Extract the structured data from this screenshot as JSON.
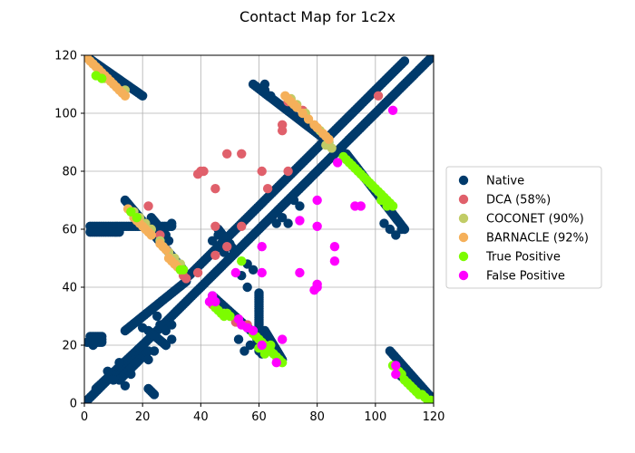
{
  "chart_data": {
    "type": "scatter",
    "title": "Contact Map for 1c2x",
    "xlabel": "",
    "ylabel": "",
    "xlim": [
      0,
      120
    ],
    "ylim": [
      0,
      120
    ],
    "xticks": [
      0,
      20,
      40,
      60,
      80,
      100,
      120
    ],
    "yticks": [
      0,
      20,
      40,
      60,
      80,
      100,
      120
    ],
    "grid": true,
    "legend_position": "right",
    "series": [
      {
        "name": "Native",
        "color": "#003a6b",
        "segments": [
          {
            "from": [
              0,
              0
            ],
            "to": [
              120,
              120
            ]
          },
          {
            "from": [
              0,
              120
            ],
            "to": [
              20,
              106
            ]
          },
          {
            "from": [
              36,
              44
            ],
            "to": [
              110,
              118
            ]
          },
          {
            "from": [
              2,
              23
            ],
            "to": [
              6,
              23
            ]
          },
          {
            "from": [
              1,
              21
            ],
            "to": [
              6,
              21
            ]
          },
          {
            "from": [
              2,
              61
            ],
            "to": [
              30,
              61
            ]
          },
          {
            "from": [
              2,
              59
            ],
            "to": [
              12,
              59
            ]
          },
          {
            "from": [
              4,
              5
            ],
            "to": [
              20,
              20
            ]
          },
          {
            "from": [
              12,
              8
            ],
            "to": [
              22,
              18
            ]
          },
          {
            "from": [
              14,
              25
            ],
            "to": [
              35,
              42
            ]
          },
          {
            "from": [
              14,
              70
            ],
            "to": [
              34,
              46
            ]
          },
          {
            "from": [
              22,
              25
            ],
            "to": [
              28,
              20
            ]
          },
          {
            "from": [
              23,
              64
            ],
            "to": [
              28,
              58
            ]
          },
          {
            "from": [
              22,
              5
            ],
            "to": [
              24,
              3
            ]
          },
          {
            "from": [
              44,
              37
            ],
            "to": [
              65,
              18
            ]
          },
          {
            "from": [
              46,
              60
            ],
            "to": [
              52,
              52
            ]
          },
          {
            "from": [
              62,
              25
            ],
            "to": [
              68,
              15
            ]
          },
          {
            "from": [
              60,
              38
            ],
            "to": [
              60,
              18
            ]
          },
          {
            "from": [
              59,
              23
            ],
            "to": [
              61,
              17
            ]
          },
          {
            "from": [
              58,
              110
            ],
            "to": [
              84,
              90
            ]
          },
          {
            "from": [
              90,
              86
            ],
            "to": [
              110,
              60
            ]
          },
          {
            "from": [
              105,
              18
            ],
            "to": [
              120,
              1
            ]
          },
          {
            "from": [
              108,
              10
            ],
            "to": [
              118,
              2
            ]
          }
        ],
        "points": [
          [
            2,
            22
          ],
          [
            4,
            22
          ],
          [
            3,
            20
          ],
          [
            6,
            22
          ],
          [
            26,
            27
          ],
          [
            28,
            25
          ],
          [
            30,
            27
          ],
          [
            25,
            30
          ],
          [
            20,
            26
          ],
          [
            30,
            22
          ],
          [
            28,
            20
          ],
          [
            24,
            18
          ],
          [
            22,
            15
          ],
          [
            18,
            14
          ],
          [
            16,
            10
          ],
          [
            14,
            6
          ],
          [
            12,
            14
          ],
          [
            8,
            11
          ],
          [
            10,
            8
          ],
          [
            26,
            60
          ],
          [
            27,
            58
          ],
          [
            29,
            56
          ],
          [
            30,
            62
          ],
          [
            44,
            56
          ],
          [
            46,
            58
          ],
          [
            48,
            52
          ],
          [
            50,
            55
          ],
          [
            54,
            44
          ],
          [
            56,
            48
          ],
          [
            58,
            46
          ],
          [
            56,
            40
          ],
          [
            55,
            18
          ],
          [
            53,
            22
          ],
          [
            57,
            20
          ],
          [
            66,
            62
          ],
          [
            68,
            64
          ],
          [
            70,
            62
          ],
          [
            72,
            70
          ],
          [
            74,
            68
          ],
          [
            62,
            108
          ],
          [
            64,
            106
          ],
          [
            62,
            110
          ],
          [
            103,
            62
          ],
          [
            105,
            60
          ],
          [
            107,
            58
          ],
          [
            109,
            60
          ]
        ]
      },
      {
        "name": "DCA (58%)",
        "color": "#e0606b",
        "points": [
          [
            101,
            106
          ],
          [
            68,
            96
          ],
          [
            68,
            94
          ],
          [
            70,
            104
          ],
          [
            75,
            101
          ],
          [
            49,
            86
          ],
          [
            54,
            86
          ],
          [
            40,
            80
          ],
          [
            41,
            80
          ],
          [
            39,
            79
          ],
          [
            61,
            80
          ],
          [
            70,
            80
          ],
          [
            45,
            74
          ],
          [
            63,
            74
          ],
          [
            22,
            68
          ],
          [
            45,
            61
          ],
          [
            54,
            61
          ],
          [
            26,
            58
          ],
          [
            29,
            52
          ],
          [
            49,
            54
          ],
          [
            45,
            51
          ],
          [
            39,
            45
          ],
          [
            34,
            44
          ],
          [
            35,
            43
          ],
          [
            44,
            34
          ],
          [
            52,
            28
          ],
          [
            56,
            27
          ]
        ]
      },
      {
        "name": "COCONET (90%)",
        "color": "#c1cc66",
        "points": [
          [
            3,
            117
          ],
          [
            5,
            115
          ],
          [
            7,
            112
          ],
          [
            14,
            108
          ],
          [
            71,
            105
          ],
          [
            73,
            103
          ],
          [
            76,
            100
          ],
          [
            81,
            94
          ],
          [
            84,
            90
          ],
          [
            83,
            89
          ],
          [
            85,
            88
          ],
          [
            17,
            66
          ],
          [
            19,
            64
          ],
          [
            21,
            62
          ],
          [
            23,
            60
          ],
          [
            26,
            56
          ],
          [
            27,
            54
          ],
          [
            29,
            52
          ],
          [
            31,
            50
          ],
          [
            33,
            48
          ],
          [
            45,
            33
          ],
          [
            48,
            31
          ],
          [
            50,
            30
          ]
        ]
      },
      {
        "name": "BARNACLE (92%)",
        "color": "#f5b05a",
        "points": [
          [
            1,
            119
          ],
          [
            2,
            118
          ],
          [
            3,
            117
          ],
          [
            4,
            116
          ],
          [
            5,
            115
          ],
          [
            6,
            114
          ],
          [
            7,
            113
          ],
          [
            8,
            112
          ],
          [
            9,
            111
          ],
          [
            10,
            110
          ],
          [
            11,
            109
          ],
          [
            12,
            108
          ],
          [
            13,
            107
          ],
          [
            14,
            106
          ],
          [
            69,
            106
          ],
          [
            70,
            105
          ],
          [
            71,
            104
          ],
          [
            72,
            103
          ],
          [
            73,
            102
          ],
          [
            75,
            100
          ],
          [
            77,
            98
          ],
          [
            79,
            96
          ],
          [
            80,
            95
          ],
          [
            82,
            93
          ],
          [
            83,
            92
          ],
          [
            84,
            91
          ],
          [
            15,
            67
          ],
          [
            16,
            66
          ],
          [
            17,
            64
          ],
          [
            18,
            63
          ],
          [
            19,
            62
          ],
          [
            20,
            61
          ],
          [
            21,
            60
          ],
          [
            22,
            59
          ],
          [
            23,
            58
          ],
          [
            26,
            55
          ],
          [
            27,
            54
          ],
          [
            28,
            53
          ],
          [
            29,
            50
          ],
          [
            30,
            49
          ],
          [
            31,
            48
          ],
          [
            32,
            47
          ],
          [
            33,
            46
          ]
        ]
      },
      {
        "name": "True Positive",
        "color": "#7cfc00",
        "points": [
          [
            4,
            113
          ],
          [
            6,
            112
          ],
          [
            89,
            85
          ],
          [
            90,
            84
          ],
          [
            91,
            83
          ],
          [
            92,
            82
          ],
          [
            93,
            81
          ],
          [
            94,
            80
          ],
          [
            95,
            79
          ],
          [
            96,
            78
          ],
          [
            97,
            77
          ],
          [
            98,
            76
          ],
          [
            99,
            75
          ],
          [
            100,
            74
          ],
          [
            101,
            73
          ],
          [
            102,
            72
          ],
          [
            103,
            71
          ],
          [
            104,
            70
          ],
          [
            105,
            69
          ],
          [
            106,
            68
          ],
          [
            102,
            70
          ],
          [
            104,
            68
          ],
          [
            16,
            66
          ],
          [
            18,
            64
          ],
          [
            33,
            46
          ],
          [
            34,
            46
          ],
          [
            45,
            33
          ],
          [
            46,
            32
          ],
          [
            47,
            31
          ],
          [
            48,
            30
          ],
          [
            49,
            31
          ],
          [
            50,
            30
          ],
          [
            54,
            49
          ],
          [
            58,
            24
          ],
          [
            59,
            23
          ],
          [
            60,
            22
          ],
          [
            61,
            21
          ],
          [
            62,
            20
          ],
          [
            63,
            19
          ],
          [
            64,
            18
          ],
          [
            65,
            17
          ],
          [
            66,
            16
          ],
          [
            67,
            15
          ],
          [
            68,
            14
          ],
          [
            60,
            19
          ],
          [
            62,
            17
          ],
          [
            64,
            20
          ],
          [
            106,
            13
          ],
          [
            108,
            11
          ],
          [
            109,
            10
          ],
          [
            110,
            8
          ],
          [
            111,
            7
          ],
          [
            112,
            6
          ],
          [
            113,
            5
          ],
          [
            114,
            4
          ],
          [
            115,
            3
          ],
          [
            116,
            3
          ],
          [
            117,
            2
          ],
          [
            118,
            1
          ],
          [
            119,
            1
          ]
        ]
      },
      {
        "name": "False Positive",
        "color": "#ff00ff",
        "points": [
          [
            106,
            101
          ],
          [
            87,
            83
          ],
          [
            80,
            70
          ],
          [
            74,
            63
          ],
          [
            80,
            61
          ],
          [
            93,
            68
          ],
          [
            95,
            68
          ],
          [
            61,
            54
          ],
          [
            86,
            54
          ],
          [
            86,
            49
          ],
          [
            52,
            45
          ],
          [
            61,
            45
          ],
          [
            74,
            45
          ],
          [
            80,
            41
          ],
          [
            80,
            40
          ],
          [
            79,
            39
          ],
          [
            44,
            37
          ],
          [
            43,
            35
          ],
          [
            45,
            35
          ],
          [
            53,
            29
          ],
          [
            54,
            27
          ],
          [
            56,
            26
          ],
          [
            58,
            25
          ],
          [
            68,
            22
          ],
          [
            61,
            20
          ],
          [
            66,
            14
          ],
          [
            107,
            13
          ],
          [
            107,
            10
          ]
        ]
      }
    ]
  }
}
